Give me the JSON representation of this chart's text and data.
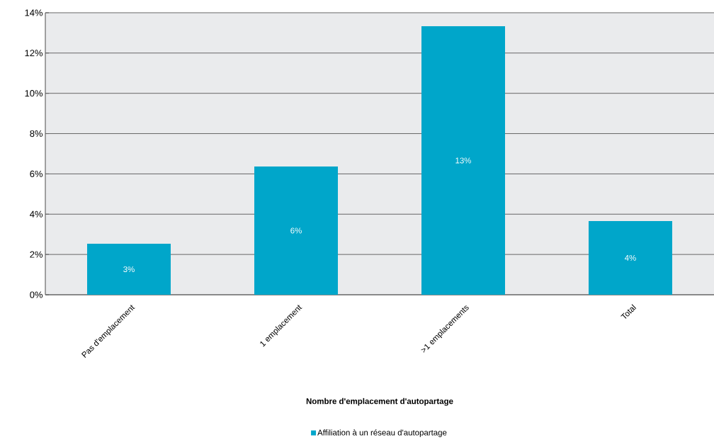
{
  "chart_data": {
    "type": "bar",
    "xlabel": "Nombre d'emplacement d'autopartage",
    "categories": [
      "Pas d'emplacement",
      "1 emplacement",
      ">1 emplacements",
      "Total"
    ],
    "series": [
      {
        "name": "Affiliation à un réseau d'autopartage",
        "color": "#00a6ca",
        "values": [
          2.53,
          6.37,
          13.33,
          3.66
        ],
        "value_labels": [
          "3%",
          "6%",
          "13%",
          "4%"
        ]
      }
    ],
    "ylim": [
      0,
      14
    ],
    "yticks": [
      {
        "value": 0,
        "label": "0%"
      },
      {
        "value": 2,
        "label": "2%"
      },
      {
        "value": 4,
        "label": "4%"
      },
      {
        "value": 6,
        "label": "6%"
      },
      {
        "value": 8,
        "label": "8%"
      },
      {
        "value": 10,
        "label": "10%"
      },
      {
        "value": 12,
        "label": "12%"
      },
      {
        "value": 14,
        "label": "14%"
      }
    ],
    "grid": "y",
    "legend": "bottom"
  }
}
